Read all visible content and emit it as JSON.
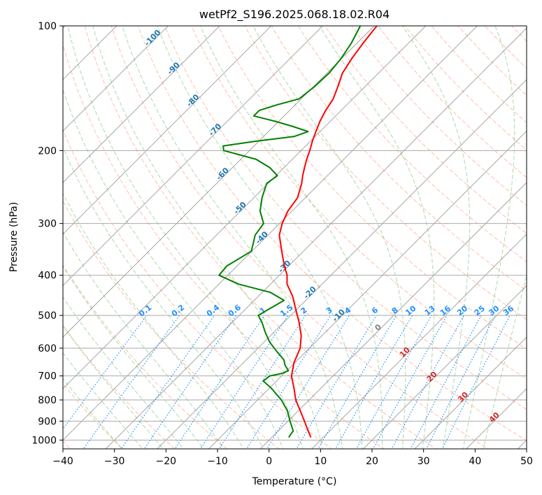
{
  "chart_data": {
    "type": "line",
    "title": "wetPf2_S196.2025.068.18.02.R04",
    "xlabel": "Temperature (°C)",
    "ylabel": "Pressure (hPa)",
    "xlim": [
      -40,
      50
    ],
    "ylim": [
      1050,
      100
    ],
    "y_scale": "log",
    "skew": "skew-T log-P",
    "grid": true,
    "x_ticks": [
      -40,
      -30,
      -20,
      -10,
      0,
      10,
      20,
      30,
      40,
      50
    ],
    "y_ticks": [
      100,
      200,
      300,
      400,
      500,
      600,
      700,
      800,
      900,
      1000
    ],
    "colors": {
      "temperature": "#ff0000",
      "dewpoint": "#008000",
      "dry_adiabat": "#ff7f50",
      "moist_adiabat": "#2ca02c",
      "mixing_ratio": "#1e90ff",
      "isotherm": "#808080",
      "isobar": "#a9a9a9",
      "label_blue": "#1f77b4",
      "label_red": "#d62728",
      "label_gray": "#808080"
    },
    "series": [
      {
        "key": "temperature",
        "p": [
          985,
          950,
          900,
          850,
          800,
          750,
          700,
          650,
          600,
          560,
          520,
          480,
          450,
          420,
          400,
          380,
          350,
          320,
          300,
          280,
          260,
          250,
          240,
          230,
          220,
          210,
          200,
          190,
          180,
          170,
          160,
          150,
          140,
          130,
          120,
          110,
          100
        ],
        "t": [
          7.6,
          5.8,
          3.2,
          0.4,
          -2.6,
          -5.2,
          -8.1,
          -10.2,
          -11.8,
          -14.0,
          -17.0,
          -20.5,
          -23.3,
          -26.8,
          -28.5,
          -30.8,
          -34.2,
          -37.8,
          -39.5,
          -40.8,
          -41.5,
          -42.5,
          -43.5,
          -44.8,
          -46.0,
          -47.2,
          -48.3,
          -49.6,
          -50.8,
          -52.0,
          -53.0,
          -53.8,
          -55.3,
          -57.0,
          -58.0,
          -58.8,
          -59.5
        ]
      },
      {
        "key": "dewpoint",
        "p": [
          985,
          950,
          900,
          850,
          800,
          750,
          720,
          700,
          690,
          680,
          660,
          640,
          610,
          580,
          550,
          520,
          500,
          480,
          460,
          440,
          420,
          400,
          380,
          350,
          320,
          300,
          280,
          260,
          240,
          230,
          220,
          210,
          200,
          195,
          190,
          185,
          180,
          175,
          170,
          165,
          160,
          155,
          150,
          140,
          130,
          120,
          110,
          100
        ],
        "t": [
          3.3,
          2.9,
          0.4,
          -2.1,
          -5.4,
          -9.6,
          -12.6,
          -12.3,
          -10.4,
          -9.7,
          -11.4,
          -12.7,
          -15.8,
          -18.9,
          -21.6,
          -24.2,
          -26.3,
          -25.3,
          -24.2,
          -28.4,
          -36.3,
          -41.7,
          -42.0,
          -40.1,
          -42.5,
          -43.1,
          -46.2,
          -48.4,
          -50.3,
          -49.7,
          -52.7,
          -57.0,
          -65.0,
          -66.0,
          -60.7,
          -54.1,
          -52.3,
          -56.2,
          -60.7,
          -65.9,
          -65.9,
          -63.5,
          -60.4,
          -59.8,
          -59.6,
          -60.1,
          -61.1,
          -62.7
        ]
      }
    ],
    "dry_adiabat_labels": [
      -100,
      -90,
      -80,
      -70,
      -60,
      -50,
      -40,
      -30,
      -20,
      -10
    ],
    "moist_adiabat_labels": [
      0,
      10,
      20,
      30,
      40
    ],
    "mixing_ratio_labels": [
      "0.1",
      "0.2",
      "0.4",
      "0.6",
      "1",
      "1.5",
      "2",
      "3",
      "4",
      "6",
      "8",
      "10",
      "13",
      "16",
      "20",
      "25",
      "30",
      "36"
    ]
  }
}
